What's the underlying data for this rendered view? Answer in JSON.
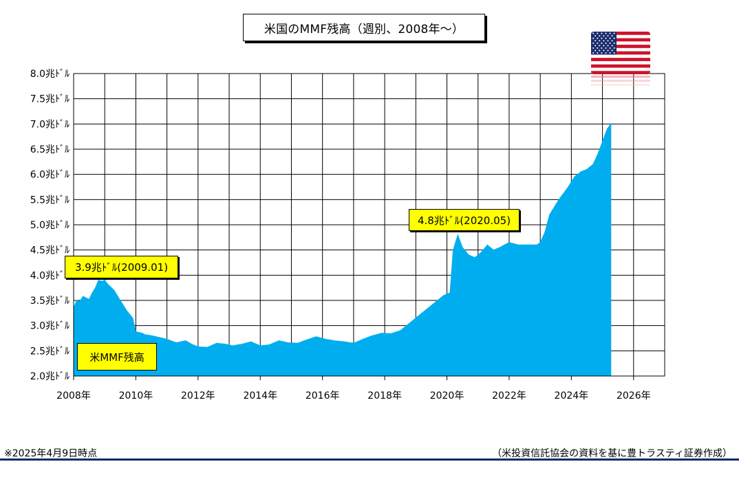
{
  "title": "米国のMMF残高（週別、2008年～）",
  "flag_icon": "us-flag",
  "footer": {
    "note": "※2025年4月9日時点",
    "source": "（米投資信託協会の資料を基に豊トラスティ証券作成）"
  },
  "colors": {
    "area_fill": "#00aeef",
    "callout_bg": "#ffff00",
    "rule": "#0b2a6b",
    "grid": "#000000"
  },
  "chart_data": {
    "type": "area",
    "title": "米国のMMF残高（週別、2008年～）",
    "series": [
      {
        "name": "米MMF残高",
        "x": [
          2008.0,
          2008.1,
          2008.2,
          2008.3,
          2008.5,
          2008.6,
          2008.7,
          2008.8,
          2008.9,
          2009.0,
          2009.1,
          2009.3,
          2009.5,
          2009.7,
          2009.9,
          2010.0,
          2010.2,
          2010.3,
          2010.5,
          2010.8,
          2011.0,
          2011.3,
          2011.6,
          2011.8,
          2012.0,
          2012.3,
          2012.6,
          2012.9,
          2013.1,
          2013.4,
          2013.7,
          2014.0,
          2014.3,
          2014.6,
          2014.9,
          2015.2,
          2015.5,
          2015.8,
          2016.1,
          2016.4,
          2016.7,
          2017.0,
          2017.3,
          2017.6,
          2017.9,
          2018.2,
          2018.5,
          2018.8,
          2019.0,
          2019.3,
          2019.6,
          2019.9,
          2020.1,
          2020.2,
          2020.35,
          2020.5,
          2020.7,
          2020.9,
          2021.1,
          2021.3,
          2021.5,
          2021.7,
          2022.0,
          2022.3,
          2022.6,
          2022.9,
          2023.0,
          2023.15,
          2023.3,
          2023.6,
          2023.9,
          2024.1,
          2024.3,
          2024.5,
          2024.7,
          2024.85,
          2025.0,
          2025.15,
          2025.27
        ],
        "values": [
          3.35,
          3.5,
          3.48,
          3.58,
          3.52,
          3.65,
          3.75,
          3.9,
          3.88,
          3.9,
          3.82,
          3.7,
          3.5,
          3.3,
          3.15,
          2.88,
          2.85,
          2.82,
          2.8,
          2.76,
          2.73,
          2.66,
          2.7,
          2.63,
          2.58,
          2.57,
          2.65,
          2.63,
          2.6,
          2.63,
          2.68,
          2.6,
          2.62,
          2.7,
          2.66,
          2.65,
          2.72,
          2.78,
          2.73,
          2.7,
          2.68,
          2.65,
          2.73,
          2.8,
          2.85,
          2.84,
          2.9,
          3.05,
          3.15,
          3.3,
          3.45,
          3.6,
          3.65,
          4.5,
          4.8,
          4.55,
          4.4,
          4.35,
          4.45,
          4.6,
          4.5,
          4.55,
          4.65,
          4.6,
          4.6,
          4.6,
          4.65,
          4.85,
          5.2,
          5.5,
          5.75,
          5.95,
          6.05,
          6.1,
          6.2,
          6.4,
          6.65,
          6.9,
          7.0
        ]
      }
    ],
    "xlim": [
      2008,
      2027
    ],
    "ylim": [
      2.0,
      8.0
    ],
    "x_ticks": [
      2008,
      2010,
      2012,
      2014,
      2016,
      2018,
      2020,
      2022,
      2024,
      2026
    ],
    "x_tick_labels": [
      "2008年",
      "2010年",
      "2012年",
      "2014年",
      "2016年",
      "2018年",
      "2020年",
      "2022年",
      "2024年",
      "2026年"
    ],
    "y_ticks": [
      2.0,
      2.5,
      3.0,
      3.5,
      4.0,
      4.5,
      5.0,
      5.5,
      6.0,
      6.5,
      7.0,
      7.5,
      8.0
    ],
    "y_tick_labels": [
      "2.0兆ﾄﾞﾙ",
      "2.5兆ﾄﾞﾙ",
      "3.0兆ﾄﾞﾙ",
      "3.5兆ﾄﾞﾙ",
      "4.0兆ﾄﾞﾙ",
      "4.5兆ﾄﾞﾙ",
      "5.0兆ﾄﾞﾙ",
      "5.5兆ﾄﾞﾙ",
      "6.0兆ﾄﾞﾙ",
      "6.5兆ﾄﾞﾙ",
      "7.0兆ﾄﾞﾙ",
      "7.5兆ﾄﾞﾙ",
      "8.0兆ﾄﾞﾙ"
    ],
    "grid": true,
    "legend": "inside-bottom-left",
    "annotations": [
      {
        "text": "3.9兆ﾄﾞﾙ(2009.01)",
        "x": 2009.0,
        "y": 3.9
      },
      {
        "text": "4.8兆ﾄﾞﾙ(2020.05)",
        "x": 2020.35,
        "y": 4.8
      }
    ]
  }
}
